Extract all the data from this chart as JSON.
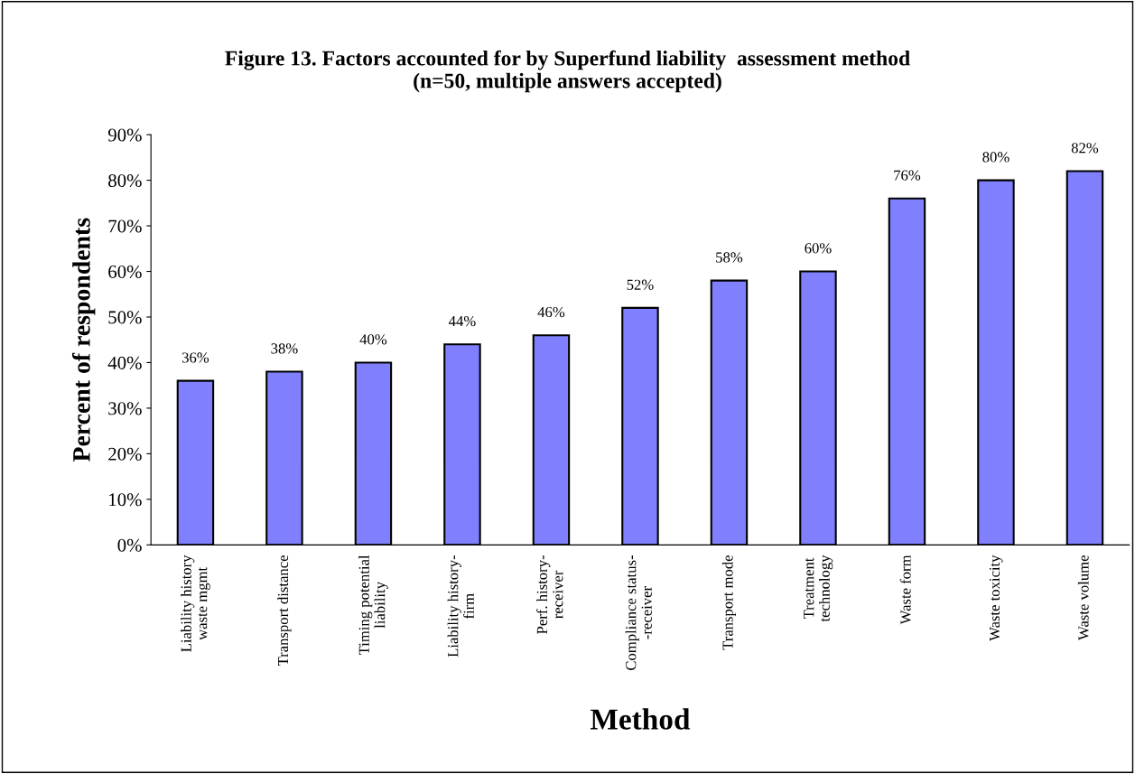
{
  "chart_data": {
    "type": "bar",
    "title": "Figure 13. Factors accounted for by Superfund liability  assessment method\n(n=50, multiple answers accepted)",
    "xlabel": "Method",
    "ylabel": "Percent of respondents",
    "categories": [
      "Liability history\nwaste mgmt",
      "Transport distance",
      "Timing potential\nliability",
      "Liability history-\nfirm",
      "Perf. history-\nreceiver",
      "Compliance status-\n-receiver",
      "Transport mode",
      "Treatment\ntechnology",
      "Waste form",
      "Waste toxicity",
      "Waste volume"
    ],
    "values": [
      36,
      38,
      40,
      44,
      46,
      52,
      58,
      60,
      76,
      80,
      82
    ],
    "value_labels": [
      "36%",
      "38%",
      "40%",
      "44%",
      "46%",
      "52%",
      "58%",
      "60%",
      "76%",
      "80%",
      "82%"
    ],
    "color": "#8080ff",
    "ylim": [
      0,
      90
    ],
    "yticks": [
      {
        "value": 0,
        "label": "0%"
      },
      {
        "value": 10,
        "label": "10%"
      },
      {
        "value": 20,
        "label": "20%"
      },
      {
        "value": 30,
        "label": "30%"
      },
      {
        "value": 40,
        "label": "40%"
      },
      {
        "value": 50,
        "label": "50%"
      },
      {
        "value": 60,
        "label": "60%"
      },
      {
        "value": 70,
        "label": "70%"
      },
      {
        "value": 80,
        "label": "80%"
      },
      {
        "value": 90,
        "label": "90%"
      }
    ],
    "grid": false,
    "legend": false
  }
}
